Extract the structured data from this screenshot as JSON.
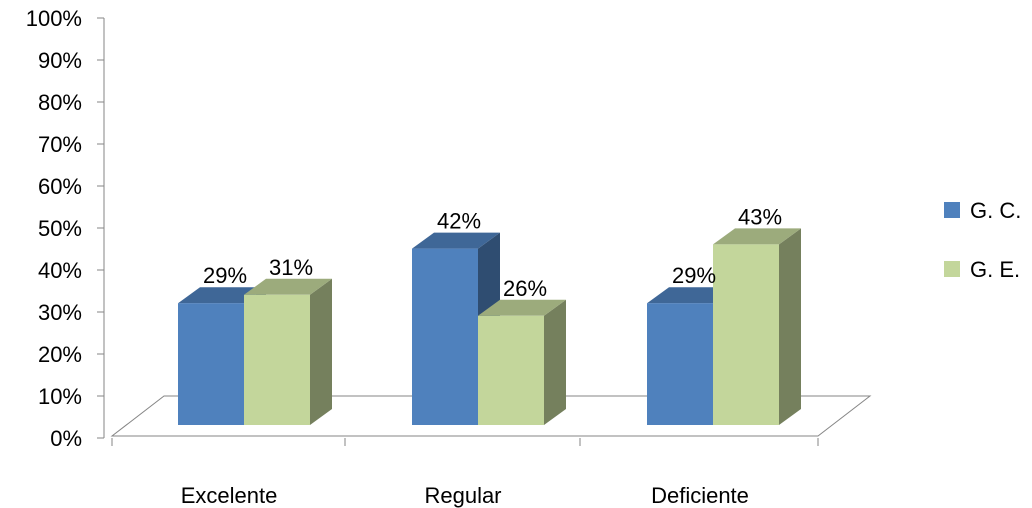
{
  "chart_data": {
    "type": "bar",
    "style": "3d-clustered-column",
    "categories": [
      "Excelente",
      "Regular",
      "Deficiente"
    ],
    "series": [
      {
        "name": "G. C.",
        "values": [
          29,
          42,
          29
        ],
        "color": "#4F81BD"
      },
      {
        "name": "G. E.",
        "values": [
          31,
          26,
          43
        ],
        "color": "#C3D69B"
      }
    ],
    "data_labels": [
      [
        "29%",
        "42%",
        "29%"
      ],
      [
        "31%",
        "26%",
        "43%"
      ]
    ],
    "y_ticks": [
      "0%",
      "10%",
      "20%",
      "30%",
      "40%",
      "50%",
      "60%",
      "70%",
      "80%",
      "90%",
      "100%"
    ],
    "ylim": [
      0,
      100
    ],
    "unit": "%",
    "grid": false,
    "legend_position": "right"
  }
}
